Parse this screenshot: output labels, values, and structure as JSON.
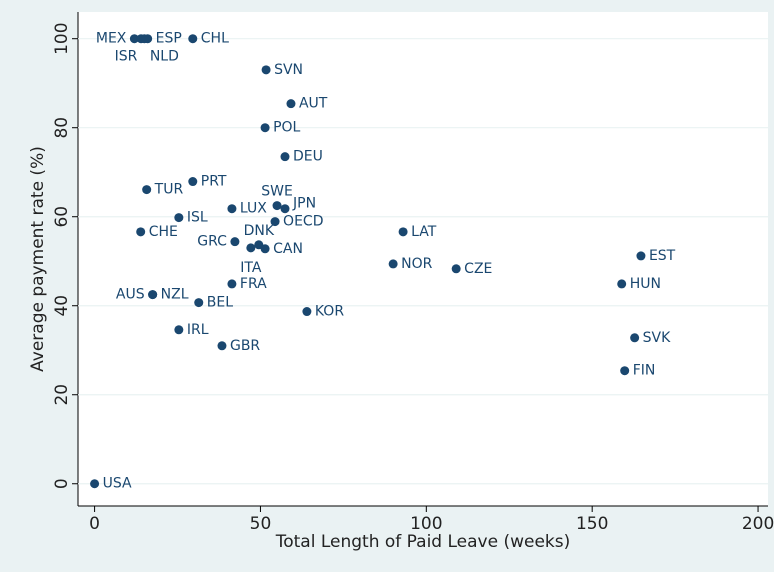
{
  "chart_data": {
    "type": "scatter",
    "x_label": "Total Length of Paid Leave (weeks)",
    "y_label": "Average payment rate (%)",
    "color": "#1a476f",
    "grid": true,
    "xlim": [
      -5,
      203
    ],
    "ylim": [
      -5,
      106
    ],
    "xticks": [
      0,
      50,
      100,
      150,
      200
    ],
    "yticks": [
      0,
      20,
      40,
      60,
      80,
      100
    ],
    "labels": [
      "USA",
      "MEX",
      "ISR",
      "ESP",
      "NLD",
      "CHL",
      "SVN",
      "AUT",
      "POL",
      "DEU",
      "TUR",
      "PRT",
      "SWE",
      "JPN",
      "LUX",
      "ISL",
      "OECD",
      "CHE",
      "LAT",
      "GRC",
      "DNK",
      "ITA",
      "CAN",
      "EST",
      "NOR",
      "CZE",
      "FRA",
      "HUN",
      "AUS",
      "NZL",
      "BEL",
      "KOR",
      "IRL",
      "SVK",
      "GBR",
      "FIN"
    ],
    "x": [
      0,
      12,
      14,
      16,
      15,
      29.6,
      51.7,
      59.2,
      51.4,
      57.4,
      15.7,
      29.6,
      55,
      57.4,
      41.4,
      25.4,
      54.4,
      13.9,
      93,
      42.3,
      49.5,
      47.1,
      51.4,
      164.7,
      90,
      109,
      41.4,
      158.9,
      17.5,
      17.5,
      31.4,
      64,
      25.4,
      162.8,
      38.4,
      159.8
    ],
    "values": [
      0,
      100,
      100,
      100,
      100,
      100,
      93,
      85.4,
      80,
      73.5,
      66.1,
      67.9,
      62.5,
      61.8,
      61.8,
      59.8,
      58.9,
      56.6,
      56.6,
      54.4,
      53.7,
      53,
      52.8,
      51.2,
      49.4,
      48.3,
      44.9,
      44.9,
      42.5,
      42.5,
      40.7,
      38.7,
      34.6,
      32.8,
      31,
      25.4
    ]
  }
}
